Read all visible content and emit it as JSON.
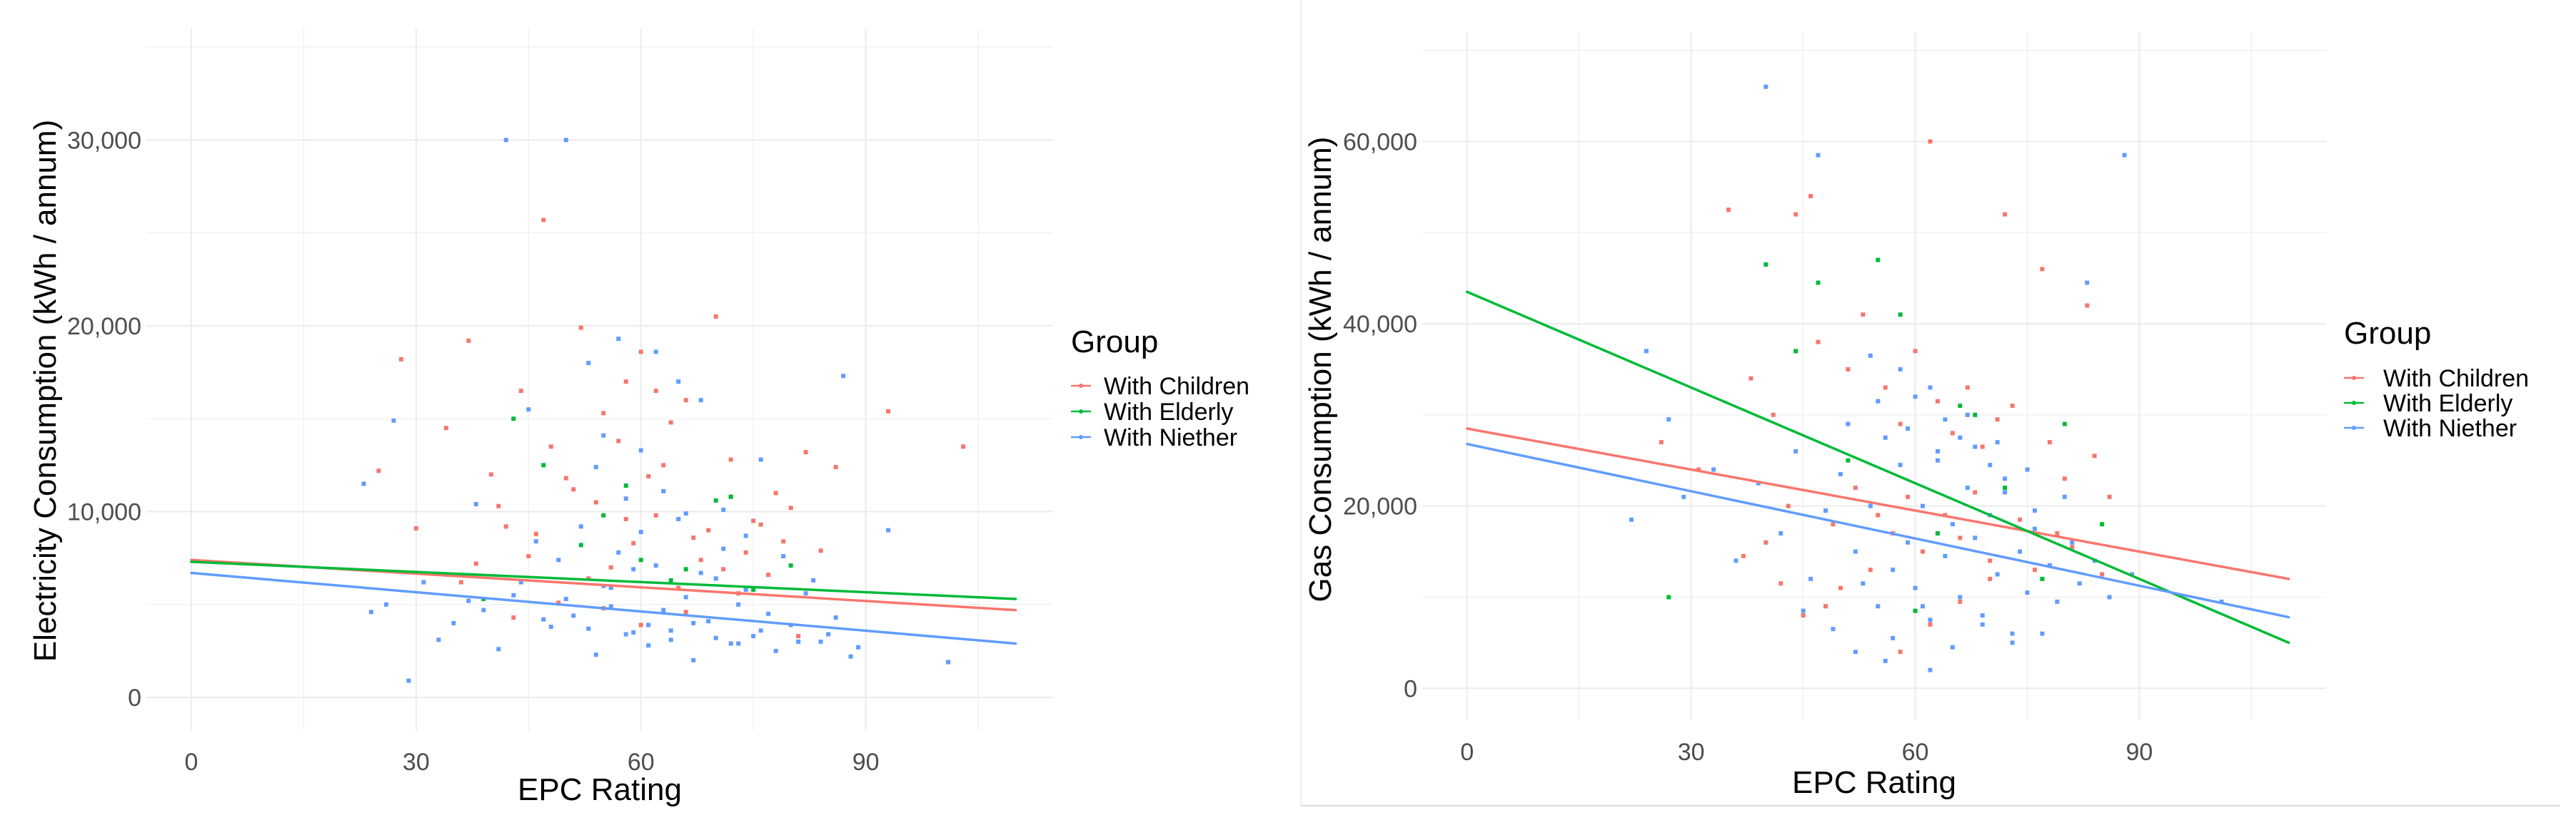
{
  "colors": {
    "with_children": "#F8766D",
    "with_elderly": "#00BA38",
    "with_niether": "#619CFF",
    "grid": "#ebebeb",
    "divider": "#d9d9d9"
  },
  "chart_data": [
    {
      "type": "scatter",
      "xlabel": "EPC Rating",
      "ylabel": "Electricity Consumption (kWh / annum)",
      "xlim": [
        -6,
        115
      ],
      "ylim": [
        -1800,
        36000
      ],
      "xticks": [
        0,
        30,
        60,
        90
      ],
      "xtick_labels": [
        "0",
        "30",
        "60",
        "90"
      ],
      "yticks": [
        0,
        10000,
        20000,
        30000
      ],
      "ytick_labels": [
        "0",
        "10,000",
        "20,000",
        "30,000"
      ],
      "legend": {
        "title": "Group",
        "position": "right",
        "entries": [
          "With Children",
          "With Elderly",
          "With Niether"
        ]
      },
      "series": [
        {
          "name": "With Children",
          "trend": {
            "x": [
              0,
              110
            ],
            "y": [
              7400,
              4700
            ]
          },
          "points": {
            "x": [
              25,
              28,
              37,
              40,
              44,
              47,
              50,
              52,
              55,
              57,
              60,
              63,
              66,
              70,
              72,
              75,
              78,
              82,
              93,
              103,
              36,
              42,
              48,
              54,
              59,
              64,
              69,
              74,
              80,
              86,
              38,
              45,
              51,
              56,
              62,
              67,
              72,
              77,
              84,
              46,
              53,
              58,
              61,
              65,
              68,
              71,
              76,
              79,
              30,
              34,
              41,
              43,
              49,
              55,
              60,
              66,
              73,
              81,
              58,
              62
            ],
            "y": [
              12200,
              18200,
              19200,
              12000,
              16500,
              25700,
              11800,
              19900,
              15300,
              13800,
              18600,
              12500,
              16000,
              20500,
              12800,
              9500,
              11000,
              13200,
              15400,
              13500,
              6200,
              9200,
              13500,
              10500,
              8300,
              14800,
              9000,
              7800,
              10200,
              12400,
              7200,
              7600,
              11200,
              7000,
              9800,
              8600,
              10800,
              6600,
              7900,
              8800,
              6400,
              9600,
              11900,
              5900,
              7400,
              6900,
              9300,
              8400,
              9100,
              14500,
              10300,
              4300,
              5100,
              4800,
              3900,
              4600,
              5600,
              3300,
              17000,
              16500
            ]
          }
        },
        {
          "name": "With Elderly",
          "trend": {
            "x": [
              0,
              110
            ],
            "y": [
              7300,
              5300
            ]
          },
          "points": {
            "x": [
              47,
              72,
              60,
              35,
              66,
              55,
              80,
              43,
              70,
              52,
              64,
              75,
              39,
              58
            ],
            "y": [
              12500,
              10800,
              7400,
              6600,
              6900,
              9800,
              7100,
              15000,
              10600,
              8200,
              6300,
              5800,
              5300,
              11400
            ]
          }
        },
        {
          "name": "With Niether",
          "trend": {
            "x": [
              0,
              110
            ],
            "y": [
              6700,
              2900
            ]
          },
          "points": {
            "x": [
              42,
              50,
              53,
              57,
              62,
              65,
              27,
              23,
              45,
              68,
              76,
              87,
              93,
              101,
              24,
              29,
              33,
              37,
              41,
              44,
              48,
              51,
              54,
              56,
              58,
              59,
              61,
              63,
              64,
              66,
              67,
              69,
              70,
              72,
              73,
              75,
              77,
              78,
              80,
              82,
              84,
              86,
              88,
              46,
              49,
              52,
              55,
              57,
              60,
              62,
              65,
              68,
              71,
              74,
              79,
              83,
              26,
              31,
              35,
              39,
              43,
              47,
              50,
              53,
              56,
              59,
              61,
              64,
              67,
              70,
              73,
              76,
              81,
              85,
              89,
              38,
              54,
              58,
              63,
              66,
              71,
              74,
              60,
              55
            ],
            "y": [
              30000,
              30000,
              18000,
              19300,
              18600,
              17000,
              14900,
              11500,
              15500,
              16000,
              12800,
              17300,
              9000,
              1900,
              4600,
              900,
              3100,
              5200,
              2600,
              6200,
              3800,
              4400,
              2300,
              5900,
              3400,
              6900,
              2800,
              4700,
              3600,
              5400,
              2000,
              4100,
              6400,
              2900,
              5000,
              3300,
              4500,
              2500,
              3900,
              5600,
              3000,
              4300,
              2200,
              8400,
              7400,
              9200,
              6000,
              7800,
              8900,
              7100,
              9600,
              6700,
              8000,
              5800,
              7600,
              6300,
              5000,
              6200,
              4000,
              4700,
              5500,
              4200,
              5300,
              3700,
              4900,
              3500,
              3900,
              3100,
              4000,
              3200,
              2900,
              3600,
              3000,
              3400,
              2700,
              10400,
              12400,
              10700,
              11100,
              9900,
              10100,
              8700,
              13300,
              14100
            ]
          }
        }
      ]
    },
    {
      "type": "scatter",
      "xlabel": "EPC Rating",
      "ylabel": "Gas Consumption (kWh / annum)",
      "xlim": [
        -6,
        115
      ],
      "ylim": [
        -3500,
        72000
      ],
      "xticks": [
        0,
        30,
        60,
        90
      ],
      "xtick_labels": [
        "0",
        "30",
        "60",
        "90"
      ],
      "yticks": [
        0,
        20000,
        40000,
        60000
      ],
      "ytick_labels": [
        "0",
        "20,000",
        "40,000",
        "60,000"
      ],
      "legend": {
        "title": "Group",
        "position": "right",
        "entries": [
          "With Children",
          "With Elderly",
          "With Niether"
        ]
      },
      "series": [
        {
          "name": "With Children",
          "trend": {
            "x": [
              0,
              110
            ],
            "y": [
              28500,
              12000
            ]
          },
          "points": {
            "x": [
              35,
              44,
              46,
              62,
              72,
              77,
              83,
              26,
              31,
              38,
              41,
              47,
              51,
              53,
              56,
              58,
              60,
              63,
              65,
              67,
              69,
              71,
              73,
              75,
              78,
              80,
              84,
              86,
              40,
              43,
              49,
              52,
              55,
              57,
              59,
              61,
              64,
              66,
              68,
              70,
              74,
              76,
              79,
              81,
              85,
              45,
              50,
              54,
              62,
              66,
              70,
              58,
              37,
              42,
              48
            ],
            "y": [
              52500,
              52000,
              54000,
              60000,
              52000,
              46000,
              42000,
              27000,
              24000,
              34000,
              30000,
              38000,
              35000,
              41000,
              33000,
              29000,
              37000,
              31500,
              28000,
              33000,
              26500,
              29500,
              31000,
              24000,
              27000,
              23000,
              25500,
              21000,
              16000,
              20000,
              18000,
              22000,
              19000,
              17000,
              21000,
              15000,
              19000,
              16500,
              21500,
              14000,
              18500,
              13000,
              17000,
              15500,
              12500,
              8000,
              11000,
              13000,
              7000,
              9500,
              12000,
              4000,
              14500,
              11500,
              9000
            ]
          }
        },
        {
          "name": "With Elderly",
          "trend": {
            "x": [
              0,
              110
            ],
            "y": [
              43500,
              5000
            ]
          },
          "points": {
            "x": [
              40,
              47,
              55,
              58,
              68,
              80,
              44,
              51,
              63,
              72,
              77,
              85,
              27,
              60,
              66
            ],
            "y": [
              46500,
              44500,
              47000,
              41000,
              30000,
              29000,
              37000,
              25000,
              17000,
              22000,
              12000,
              18000,
              10000,
              8500,
              31000
            ]
          }
        },
        {
          "name": "With Niether",
          "trend": {
            "x": [
              0,
              110
            ],
            "y": [
              26800,
              7800
            ]
          },
          "points": {
            "x": [
              40,
              47,
              88,
              83,
              24,
              27,
              22,
              29,
              33,
              36,
              39,
              42,
              44,
              46,
              48,
              50,
              52,
              54,
              55,
              56,
              57,
              58,
              59,
              60,
              61,
              62,
              63,
              64,
              65,
              66,
              67,
              68,
              69,
              70,
              71,
              72,
              73,
              74,
              75,
              76,
              78,
              79,
              81,
              82,
              84,
              86,
              89,
              101,
              45,
              49,
              53,
              57,
              61,
              65,
              69,
              73,
              77,
              51,
              55,
              59,
              63,
              67,
              71,
              75,
              80,
              58,
              62,
              66,
              70,
              54,
              60,
              64,
              68,
              72,
              76,
              56,
              52,
              62
            ],
            "y": [
              66000,
              58500,
              58500,
              44500,
              37000,
              29500,
              18500,
              21000,
              24000,
              14000,
              22500,
              17000,
              26000,
              12000,
              19500,
              23500,
              15000,
              20000,
              9000,
              27500,
              13000,
              24500,
              16000,
              11000,
              20000,
              7500,
              25000,
              14500,
              18000,
              10000,
              22000,
              16500,
              8000,
              19000,
              12500,
              21500,
              6000,
              15000,
              10500,
              17500,
              13500,
              9500,
              16000,
              11500,
              14000,
              10000,
              12500,
              9500,
              8500,
              6500,
              11500,
              5500,
              9000,
              4500,
              7000,
              5000,
              6000,
              29000,
              31500,
              28500,
              26000,
              30000,
              27000,
              24000,
              21000,
              35000,
              33000,
              27500,
              24500,
              36500,
              32000,
              29500,
              26500,
              23000,
              19500,
              3000,
              4000,
              2000
            ]
          }
        }
      ]
    }
  ]
}
